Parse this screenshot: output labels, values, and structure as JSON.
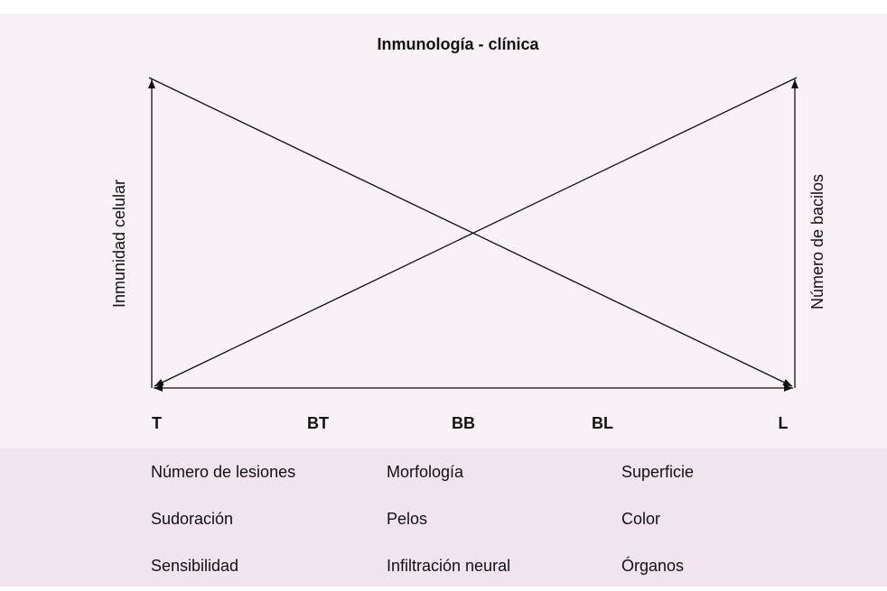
{
  "title": "Inmunología - clínica",
  "axes": {
    "left": "Inmunidad celular",
    "right": "Número de bacilos"
  },
  "spectrum": [
    "T",
    "BT",
    "BB",
    "BL",
    "L"
  ],
  "table": {
    "rows": [
      [
        "Número de lesiones",
        "Morfología",
        "Superficie"
      ],
      [
        "Sudoración",
        "Pelos",
        "Color"
      ],
      [
        "Sensibilidad",
        "Infiltración neural",
        "Órganos"
      ]
    ]
  }
}
